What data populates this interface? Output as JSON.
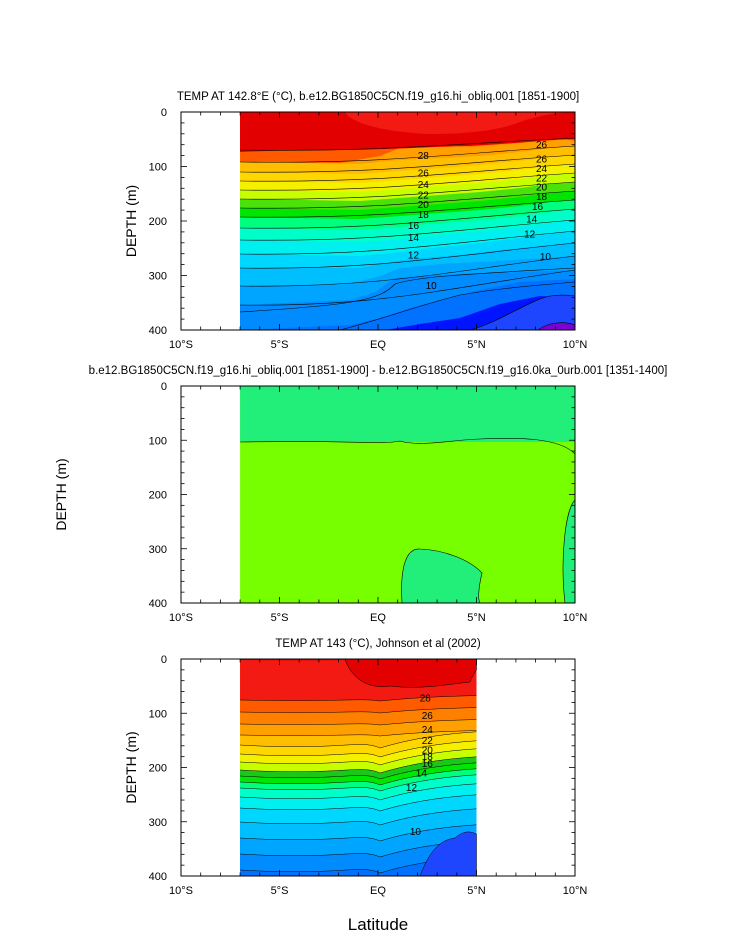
{
  "figure": {
    "xlabel": "Latitude",
    "colors": {
      "c29": "#e30000",
      "c28": "#f41a14",
      "c27": "#ff5a00",
      "c26": "#ff7f00",
      "c25": "#ffa000",
      "c24": "#ffbf00",
      "c23": "#ffd700",
      "c22": "#f5f000",
      "c21": "#c8ff00",
      "c20": "#4be10a",
      "c19": "#19c819",
      "c18": "#00e600",
      "c17": "#00ff7f",
      "c16": "#00ffc8",
      "c15": "#00f0f0",
      "c14": "#00d7ff",
      "c13": "#00bfff",
      "c12": "#00a5ff",
      "c11": "#008cff",
      "c10": "#0072ff",
      "c9": "#1e46ff",
      "c8": "#0014ff",
      "c7": "#7a00d6",
      "diff_main": "#77ff00",
      "diff_patch": "#22ee7a"
    }
  },
  "chart_data": [
    {
      "type": "contour",
      "title": "TEMP AT 142.8°E (°C), b.e12.BG1850C5CN.f19_g16.hi_obliq.001 [1851-1900]",
      "ylabel": "DEPTH (m)",
      "xlim": [
        -10,
        10
      ],
      "ylim": [
        0,
        400
      ],
      "x_tick_labels": [
        "10°S",
        "5°S",
        "EQ",
        "5°N",
        "10°N"
      ],
      "x_ticks": [
        -10,
        -5,
        0,
        5,
        10
      ],
      "y_ticks": [
        0,
        100,
        200,
        300,
        400
      ],
      "y_tick_labels": [
        "0",
        "100",
        "200",
        "300",
        "400"
      ],
      "data_extent_lat": [
        -7,
        10
      ],
      "contour_levels": [
        28,
        26,
        24,
        22,
        20,
        18,
        16,
        14,
        12,
        10
      ],
      "contour_labels": [
        {
          "text": "28",
          "lat": 2.3,
          "depth": 80
        },
        {
          "text": "26",
          "lat": 2.3,
          "depth": 112
        },
        {
          "text": "24",
          "lat": 2.3,
          "depth": 133
        },
        {
          "text": "22",
          "lat": 2.3,
          "depth": 152
        },
        {
          "text": "20",
          "lat": 2.3,
          "depth": 170
        },
        {
          "text": "18",
          "lat": 2.3,
          "depth": 188
        },
        {
          "text": "16",
          "lat": 1.8,
          "depth": 208
        },
        {
          "text": "14",
          "lat": 1.8,
          "depth": 230
        },
        {
          "text": "12",
          "lat": 1.8,
          "depth": 262
        },
        {
          "text": "10",
          "lat": 2.7,
          "depth": 318
        },
        {
          "text": "26",
          "lat": 8.3,
          "depth": 60
        },
        {
          "text": "26",
          "lat": 8.3,
          "depth": 86
        },
        {
          "text": "24",
          "lat": 8.3,
          "depth": 104
        },
        {
          "text": "22",
          "lat": 8.3,
          "depth": 121
        },
        {
          "text": "20",
          "lat": 8.3,
          "depth": 138
        },
        {
          "text": "18",
          "lat": 8.3,
          "depth": 155
        },
        {
          "text": "16",
          "lat": 8.1,
          "depth": 173
        },
        {
          "text": "14",
          "lat": 7.8,
          "depth": 196
        },
        {
          "text": "12",
          "lat": 7.7,
          "depth": 224
        },
        {
          "text": "10",
          "lat": 8.5,
          "depth": 265
        }
      ]
    },
    {
      "type": "contour",
      "title": "b.e12.BG1850C5CN.f19_g16.hi_obliq.001 [1851-1900] - b.e12.BG1850C5CN.f19_g16.0ka_0urb.001 [1351-1400]",
      "ylabel": "DEPTH (m)",
      "xlim": [
        -10,
        10
      ],
      "ylim": [
        0,
        400
      ],
      "x_tick_labels": [
        "10°S",
        "5°S",
        "EQ",
        "5°N",
        "10°N"
      ],
      "x_ticks": [
        -10,
        -5,
        0,
        5,
        10
      ],
      "y_ticks": [
        0,
        100,
        200,
        300,
        400
      ],
      "y_tick_labels": [
        "0",
        "100",
        "200",
        "300",
        "400"
      ],
      "data_extent_lat": [
        -7,
        10
      ],
      "contour_levels": [],
      "contour_labels": []
    },
    {
      "type": "contour",
      "title": "TEMP AT 143 (°C), Johnson et al (2002)",
      "ylabel": "DEPTH (m)",
      "xlim": [
        -10,
        10
      ],
      "ylim": [
        0,
        400
      ],
      "x_tick_labels": [
        "10°S",
        "5°S",
        "EQ",
        "5°N",
        "10°N"
      ],
      "x_ticks": [
        -10,
        -5,
        0,
        5,
        10
      ],
      "y_ticks": [
        0,
        100,
        200,
        300,
        400
      ],
      "y_tick_labels": [
        "0",
        "100",
        "200",
        "300",
        "400"
      ],
      "data_extent_lat": [
        -7,
        5
      ],
      "contour_levels": [
        28,
        26,
        24,
        22,
        20,
        18,
        16,
        14,
        12,
        10
      ],
      "contour_labels": [
        {
          "text": "28",
          "lat": 2.4,
          "depth": 72
        },
        {
          "text": "26",
          "lat": 2.5,
          "depth": 104
        },
        {
          "text": "24",
          "lat": 2.5,
          "depth": 130
        },
        {
          "text": "22",
          "lat": 2.5,
          "depth": 150
        },
        {
          "text": "20",
          "lat": 2.5,
          "depth": 168
        },
        {
          "text": "18",
          "lat": 2.5,
          "depth": 180
        },
        {
          "text": "16",
          "lat": 2.5,
          "depth": 193
        },
        {
          "text": "14",
          "lat": 2.2,
          "depth": 210
        },
        {
          "text": "12",
          "lat": 1.7,
          "depth": 237
        },
        {
          "text": "10",
          "lat": 1.9,
          "depth": 318
        }
      ]
    }
  ]
}
